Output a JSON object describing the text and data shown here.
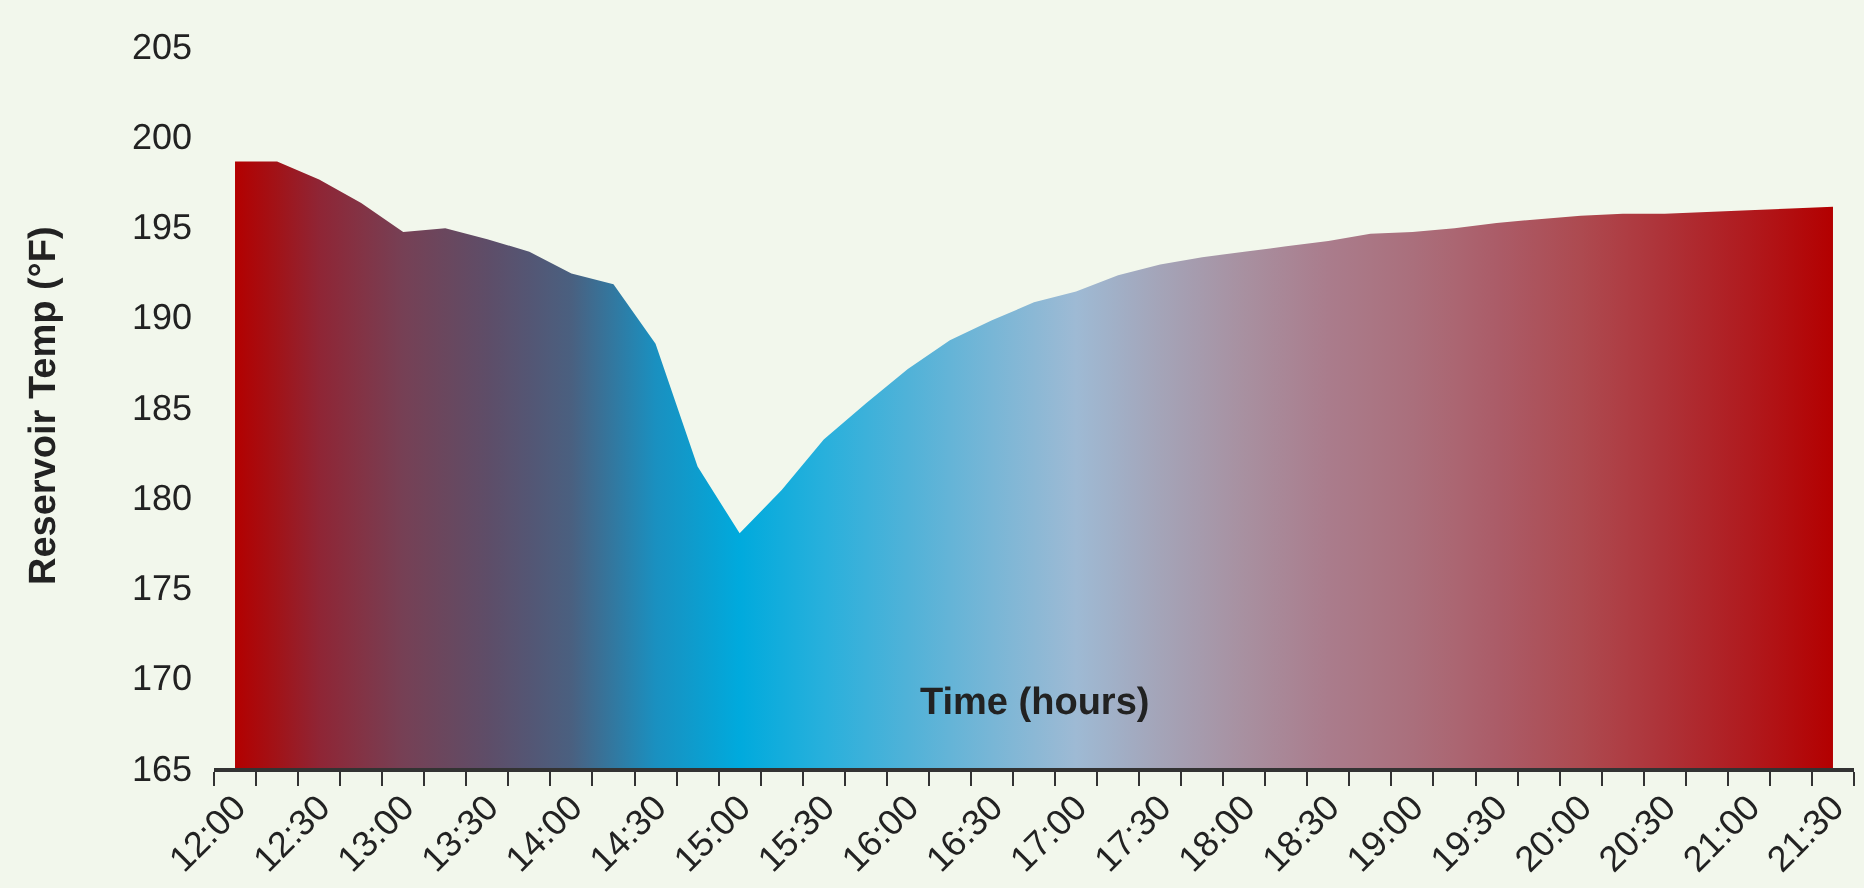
{
  "chart_data": {
    "type": "area",
    "xlabel": "Time (hours)",
    "ylabel": "Reservoir Temp (°F)",
    "categories": [
      "12:00",
      null,
      "12:30",
      null,
      "13:00",
      null,
      "13:30",
      null,
      "14:00",
      null,
      "14:30",
      null,
      "15:00",
      null,
      "15:30",
      null,
      "16:00",
      null,
      "16:30",
      null,
      "17:00",
      null,
      "17:30",
      null,
      "18:00",
      null,
      "18:30",
      null,
      "19:00",
      null,
      "19:30",
      null,
      "20:00",
      null,
      "20:30",
      null,
      "21:00",
      null,
      "21:30"
    ],
    "values": [
      198.6,
      198.6,
      197.6,
      196.3,
      194.7,
      194.9,
      194.3,
      193.6,
      192.4,
      191.8,
      188.5,
      181.7,
      178.0,
      180.4,
      183.2,
      185.2,
      187.1,
      188.7,
      189.8,
      190.8,
      191.4,
      192.3,
      192.9,
      193.3,
      193.6,
      193.9,
      194.2,
      194.6,
      194.7,
      194.9,
      195.2,
      195.4,
      195.6,
      195.7,
      195.7,
      195.8,
      195.9,
      196.0,
      196.1
    ],
    "colors": [
      "#b30000",
      "#a11318",
      "#8f2535",
      "#833345",
      "#764055",
      "#6a475e",
      "#5e4d68",
      "#545674",
      "#4a6080",
      "#3278a0",
      "#1a90c0",
      "#0d9dce",
      "#00aadd",
      "#14addc",
      "#28b0dc",
      "#3cb1da",
      "#50b2d8",
      "#64b4d7",
      "#78b6d6",
      "#8bb8d5",
      "#9ebad4",
      "#a1afc6",
      "#a4a4b8",
      "#a69aac",
      "#a890a0",
      "#a98696",
      "#aa7c8c",
      "#aa7684",
      "#aa6f7c",
      "#ab6672",
      "#ab5c68",
      "#ac535c",
      "#ad4a50",
      "#ae3e44",
      "#ae3238",
      "#af262b",
      "#b01a1e",
      "#b20d0f",
      "#b30000"
    ],
    "ylim": [
      165,
      205
    ],
    "yticks": [
      165,
      170,
      175,
      180,
      185,
      190,
      195,
      200,
      205
    ],
    "grid": false
  }
}
